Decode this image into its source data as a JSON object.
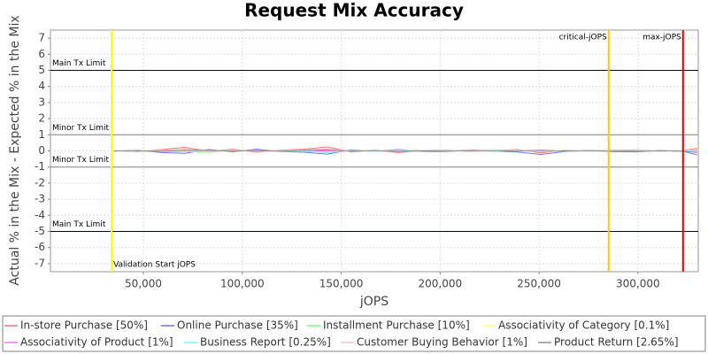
{
  "chart_data": {
    "type": "line",
    "title": "Request Mix Accuracy",
    "x_label": "jOPS",
    "y_label": "Actual % in the Mix - Expected % in the Mix",
    "xlim": [
      3000,
      330500
    ],
    "ylim": [
      -7.5,
      7.5
    ],
    "xticks": [
      {
        "value": 50000,
        "label": "50,000"
      },
      {
        "value": 100000,
        "label": "100,000"
      },
      {
        "value": 150000,
        "label": "150,000"
      },
      {
        "value": 200000,
        "label": "200,000"
      },
      {
        "value": 250000,
        "label": "250,000"
      },
      {
        "value": 300000,
        "label": "300,000"
      }
    ],
    "yticks": [
      -7,
      -6,
      -5,
      -4,
      -3,
      -2,
      -1,
      0,
      1,
      2,
      3,
      4,
      5,
      6,
      7
    ],
    "grid": true,
    "limits": [
      {
        "value": 5,
        "label": "Main Tx Limit",
        "color": "#000050"
      },
      {
        "value": 1,
        "label": "Minor Tx Limit",
        "color": "#808080"
      },
      {
        "value": -1,
        "label": "Minor Tx Limit",
        "color": "#808080"
      },
      {
        "value": -5,
        "label": "Main Tx Limit",
        "color": "#000050"
      }
    ],
    "markers": [
      {
        "value": 33900,
        "label": "Validation Start jOPS",
        "color": "#ffff00"
      },
      {
        "value": 285200,
        "label": "critical-jOPS",
        "color": "#ffc800"
      },
      {
        "value": 322800,
        "label": "max-jOPS",
        "color": "#dd0000"
      }
    ],
    "x": [
      35000,
      47000,
      59000,
      71000,
      83000,
      95000,
      107000,
      119000,
      131000,
      143000,
      155000,
      167000,
      179000,
      191000,
      203000,
      215000,
      227000,
      239000,
      251000,
      263000,
      275000,
      287000,
      299000,
      311000,
      323000,
      330000
    ],
    "series": [
      {
        "name": "In-store Purchase [50%]",
        "color": "#ff7070",
        "values": [
          0.02,
          -0.05,
          0.08,
          0.22,
          -0.03,
          0.1,
          -0.08,
          0.05,
          0.1,
          0.25,
          -0.06,
          0.04,
          -0.1,
          0.03,
          0.06,
          -0.04,
          0.02,
          0.08,
          -0.12,
          0.05,
          -0.03,
          0.04,
          0.06,
          -0.02,
          0.03,
          0.15
        ]
      },
      {
        "name": "Online Purchase [35%]",
        "color": "#7070ff",
        "values": [
          -0.02,
          0.04,
          -0.1,
          -0.15,
          0.08,
          -0.06,
          0.1,
          -0.04,
          -0.08,
          -0.2,
          0.07,
          -0.03,
          0.09,
          -0.05,
          -0.04,
          0.06,
          -0.02,
          -0.07,
          -0.22,
          -0.04,
          0.03,
          -0.05,
          -0.06,
          0.02,
          -0.03,
          -0.25
        ]
      },
      {
        "name": "Installment Purchase [10%]",
        "color": "#70ff70",
        "values": [
          0.01,
          -0.02,
          0.03,
          -0.05,
          -0.08,
          0.04,
          -0.03,
          0.02,
          -0.06,
          -0.04,
          0.03,
          -0.02,
          0.04,
          -0.03,
          0.02,
          0.05,
          -0.04,
          0.02,
          0.03,
          -0.02,
          0.01,
          -0.03,
          0.02,
          -0.01,
          0.02,
          0
        ]
      },
      {
        "name": "Associativity of Category [0.1%]",
        "color": "#ffff70",
        "values": [
          0,
          0.01,
          0,
          0.02,
          0,
          -0.01,
          0,
          0.01,
          0,
          0,
          0.01,
          0,
          -0.01,
          0,
          0.01,
          0,
          0,
          0.01,
          0,
          -0.01,
          0,
          0.01,
          0,
          0,
          0.01,
          0
        ]
      },
      {
        "name": "Associativity of Product [1%]",
        "color": "#ff70ff",
        "values": [
          0.01,
          -0.03,
          0.02,
          0.04,
          -0.02,
          0.03,
          -0.01,
          0.02,
          -0.03,
          0.01,
          0.02,
          -0.02,
          0.01,
          0.03,
          -0.01,
          0.02,
          -0.03,
          0.01,
          0.02,
          -0.02,
          0.01,
          0.03,
          -0.01,
          0.02,
          -0.02,
          0.01
        ]
      },
      {
        "name": "Business Report [0.25%]",
        "color": "#70ffff",
        "values": [
          0,
          0.02,
          -0.04,
          -0.06,
          0.03,
          -0.02,
          0.04,
          -0.05,
          0.02,
          -0.12,
          0.03,
          -0.02,
          0.05,
          -0.03,
          0.02,
          0.04,
          -0.02,
          0.03,
          -0.04,
          0.02,
          -0.03,
          0.02,
          0.01,
          -0.02,
          0.03,
          -0.05
        ]
      },
      {
        "name": "Customer Buying Behavior [1%]",
        "color": "#ffc0c0",
        "values": [
          0.02,
          -0.02,
          0.04,
          0.1,
          -0.03,
          0.05,
          -0.04,
          0.03,
          0.06,
          0.12,
          -0.02,
          0.05,
          -0.05,
          0.02,
          0.04,
          -0.03,
          0.03,
          0.05,
          -0.06,
          0.03,
          -0.02,
          0.03,
          0.04,
          -0.01,
          0.02,
          0.08
        ]
      },
      {
        "name": "Product Return [2.65%]",
        "color": "#909090",
        "values": [
          -0.01,
          0.02,
          -0.03,
          0.05,
          0.04,
          -0.02,
          0.03,
          -0.02,
          0.04,
          0.06,
          -0.03,
          0.02,
          -0.04,
          0.01,
          -0.03,
          0.02,
          0.03,
          -0.02,
          0.05,
          -0.01,
          0.02,
          -0.02,
          -0.03,
          0.01,
          -0.02,
          -0.1
        ]
      }
    ]
  }
}
